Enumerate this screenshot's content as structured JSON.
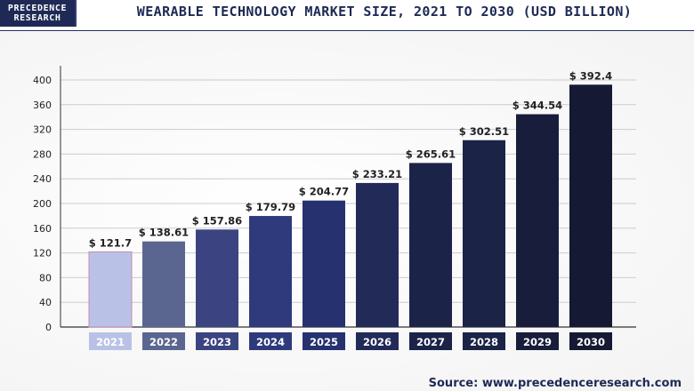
{
  "header": {
    "logo_line1": "PRECEDENCE",
    "logo_line2": "RESEARCH",
    "title": "WEARABLE TECHNOLOGY MARKET SIZE, 2021 TO 2030 (USD BILLION)"
  },
  "footer": {
    "source": "Source: www.precedenceresearch.com"
  },
  "colors": {
    "bars": [
      "#b9c2e6",
      "#5b6690",
      "#3b4480",
      "#2f3a7c",
      "#263170",
      "#222a58",
      "#1c2349",
      "#1b2347",
      "#181d3c",
      "#151933"
    ],
    "axis": "#333333",
    "grid": "#cccccc",
    "label_text": "#222222",
    "year_label_text": "#ffffff"
  },
  "chart_data": {
    "type": "bar",
    "title": "WEARABLE TECHNOLOGY MARKET SIZE, 2021 TO 2030 (USD BILLION)",
    "categories": [
      "2021",
      "2022",
      "2023",
      "2024",
      "2025",
      "2026",
      "2027",
      "2028",
      "2029",
      "2030"
    ],
    "values": [
      121.7,
      138.61,
      157.86,
      179.79,
      204.77,
      233.21,
      265.61,
      302.51,
      344.54,
      392.4
    ],
    "value_labels": [
      "$ 121.7",
      "$ 138.61",
      "$ 157.86",
      "$ 179.79",
      "$ 204.77",
      "$ 233.21",
      "$ 265.61",
      "$ 302.51",
      "$ 344.54",
      "$ 392.4"
    ],
    "xlabel": "",
    "ylabel": "",
    "ylim": [
      0,
      400
    ],
    "yticks": [
      0,
      40,
      80,
      120,
      160,
      200,
      240,
      280,
      320,
      360,
      400
    ],
    "grid": true
  }
}
